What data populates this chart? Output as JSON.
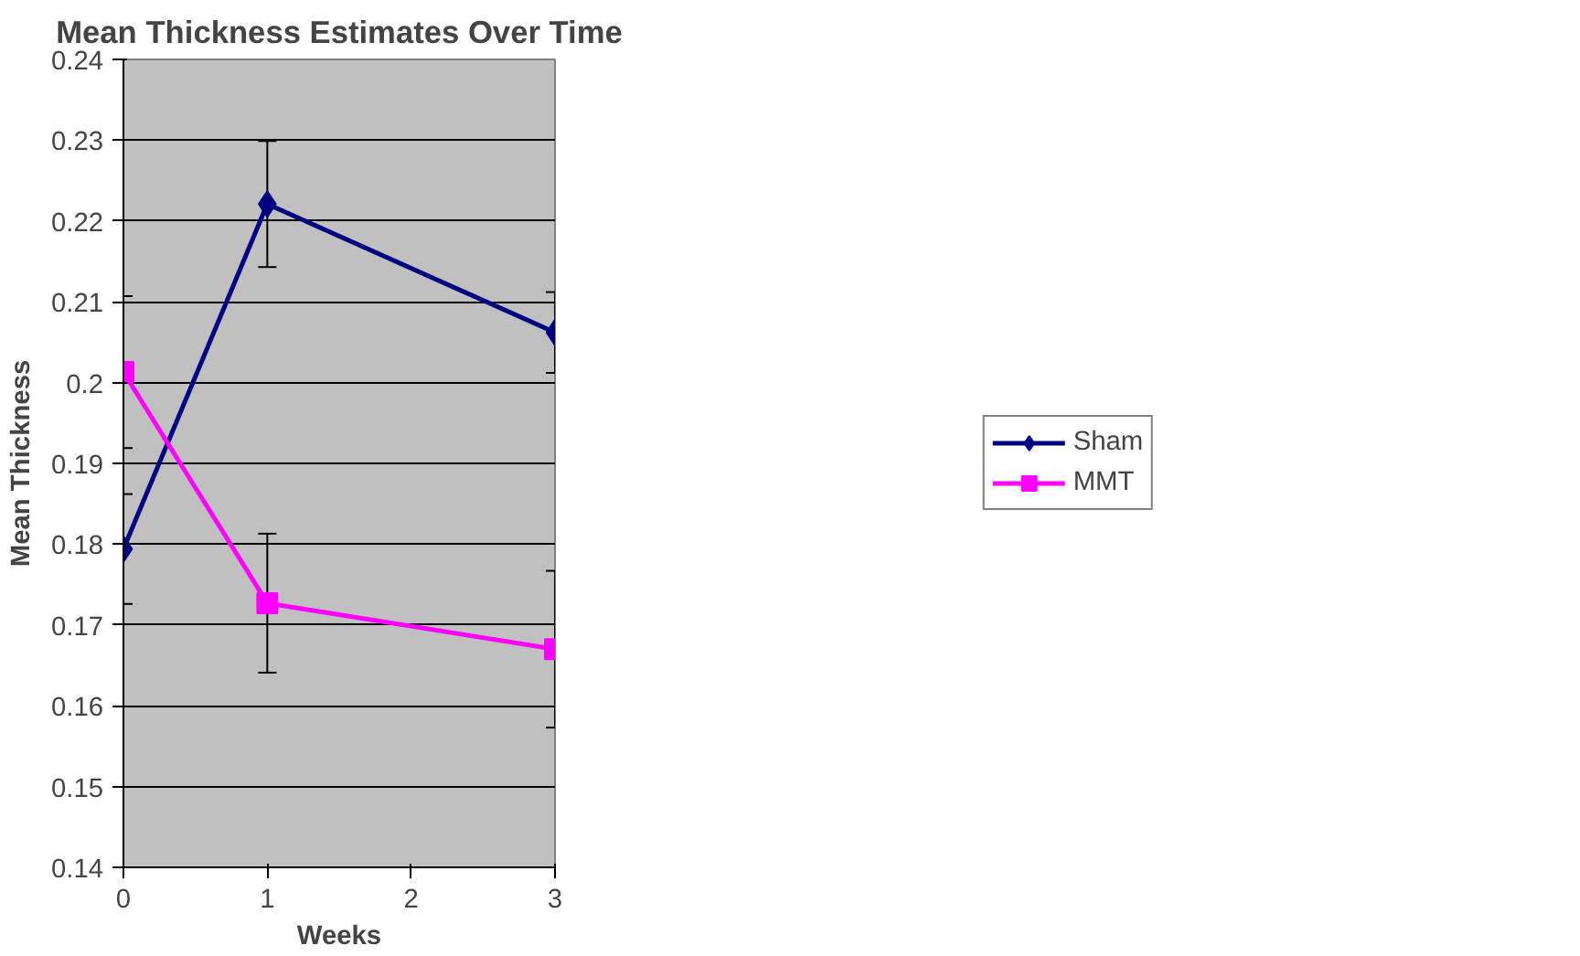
{
  "chart_data": {
    "type": "line",
    "title": "Mean Thickness Estimates Over Time",
    "xlabel": "Weeks",
    "ylabel": "Mean Thickness",
    "x": [
      0,
      1,
      3
    ],
    "series": [
      {
        "name": "Sham",
        "color": "#000080",
        "marker": "diamond",
        "values": [
          0.1794,
          0.2221,
          0.2062
        ],
        "errors": [
          0.0068,
          0.0078,
          0.005
        ]
      },
      {
        "name": "MMT",
        "color": "#ff00ff",
        "marker": "square",
        "values": [
          0.2013,
          0.1727,
          0.167
        ],
        "errors": [
          0.0094,
          0.0086,
          0.0097
        ]
      }
    ],
    "xlim": [
      0,
      3
    ],
    "xticks": [
      0,
      1,
      2,
      3
    ],
    "ylim": [
      0.14,
      0.24
    ],
    "yticks": [
      0.14,
      0.15,
      0.16,
      0.17,
      0.18,
      0.19,
      0.2,
      0.21,
      0.22,
      0.23,
      0.24
    ],
    "grid": "y",
    "legend": "right",
    "line_style": "solid"
  }
}
